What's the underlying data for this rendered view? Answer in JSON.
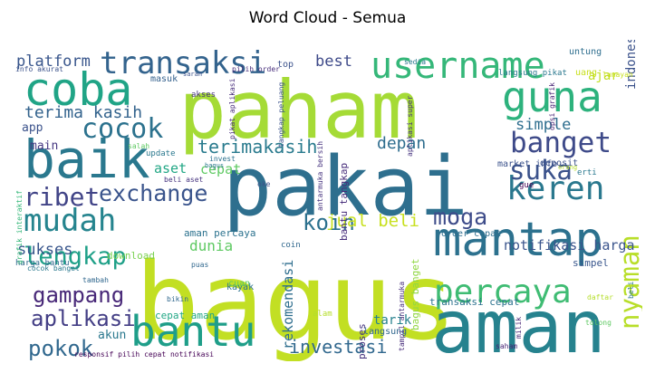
{
  "chart_data": {
    "type": "wordcloud",
    "title": "Word Cloud - Semua",
    "colormap": "viridis",
    "words": [
      {
        "text": "bagus",
        "rank": 1,
        "color": "#c2df23",
        "orient": "h"
      },
      {
        "text": "pakai",
        "rank": 2,
        "color": "#2e6f8e",
        "orient": "h"
      },
      {
        "text": "paham",
        "rank": 3,
        "color": "#a5db36",
        "orient": "h"
      },
      {
        "text": "aman",
        "rank": 4,
        "color": "#26828e",
        "orient": "h"
      },
      {
        "text": "baik",
        "rank": 5,
        "color": "#2a788e",
        "orient": "h"
      },
      {
        "text": "mantap",
        "rank": 6,
        "color": "#2c718e",
        "orient": "h"
      },
      {
        "text": "coba",
        "rank": 7,
        "color": "#20a486",
        "orient": "h"
      },
      {
        "text": "guna",
        "rank": 8,
        "color": "#2db27d",
        "orient": "h"
      },
      {
        "text": "bantu",
        "rank": 9,
        "color": "#1f9e89",
        "orient": "h"
      },
      {
        "text": "username",
        "rank": 10,
        "color": "#35b779",
        "orient": "h"
      },
      {
        "text": "percaya",
        "rank": 11,
        "color": "#3fbc73",
        "orient": "h"
      },
      {
        "text": "keren",
        "rank": 12,
        "color": "#2a788e",
        "orient": "h"
      },
      {
        "text": "mudah",
        "rank": 13,
        "color": "#25848e",
        "orient": "h"
      },
      {
        "text": "transaksi",
        "rank": 14,
        "color": "#33638d",
        "orient": "h"
      },
      {
        "text": "banget",
        "rank": 15,
        "color": "#3e4a89",
        "orient": "h"
      },
      {
        "text": "cocok",
        "rank": 16,
        "color": "#2c728e",
        "orient": "h"
      },
      {
        "text": "suka",
        "rank": 17,
        "color": "#3b528b",
        "orient": "h"
      },
      {
        "text": "ribet",
        "rank": 18,
        "color": "#414487",
        "orient": "h"
      },
      {
        "text": "lengkap",
        "rank": 19,
        "color": "#1fa088",
        "orient": "h"
      },
      {
        "text": "moga",
        "rank": 20,
        "color": "#3e4c8a",
        "orient": "h"
      },
      {
        "text": "nyaman",
        "rank": 21,
        "color": "#b8de29",
        "orient": "v"
      },
      {
        "text": "exchange",
        "rank": 22,
        "color": "#3a548c",
        "orient": "h"
      },
      {
        "text": "gampang",
        "rank": 23,
        "color": "#482878",
        "orient": "h"
      },
      {
        "text": "aplikasi",
        "rank": 24,
        "color": "#433e85",
        "orient": "h"
      },
      {
        "text": "pokok",
        "rank": 25,
        "color": "#31688e",
        "orient": "h"
      },
      {
        "text": "koin",
        "rank": 26,
        "color": "#2c718e",
        "orient": "h"
      },
      {
        "text": "terimakasih",
        "rank": 27,
        "color": "#2a7b8e",
        "orient": "h"
      },
      {
        "text": "investasi",
        "rank": 28,
        "color": "#31688e",
        "orient": "h"
      },
      {
        "text": "jual beli",
        "rank": 29,
        "color": "#c8e020",
        "orient": "h"
      },
      {
        "text": "depan",
        "rank": 30,
        "color": "#2e6d8e",
        "orient": "h"
      },
      {
        "text": "terima kasih",
        "rank": 31,
        "color": "#33638d",
        "orient": "h"
      },
      {
        "text": "simple",
        "rank": 32,
        "color": "#2e6e8e",
        "orient": "h"
      },
      {
        "text": "platform",
        "rank": 33,
        "color": "#39568c",
        "orient": "h"
      },
      {
        "text": "sukses",
        "rank": 34,
        "color": "#39568c",
        "orient": "h"
      },
      {
        "text": "best",
        "rank": 35,
        "color": "#3e4a89",
        "orient": "h"
      },
      {
        "text": "dunia",
        "rank": 36,
        "color": "#5ec962",
        "orient": "h"
      },
      {
        "text": "notifikasi harga",
        "rank": 37,
        "color": "#3a548c",
        "orient": "h"
      },
      {
        "text": "rekomendasi",
        "rank": 38,
        "color": "#2e6e8e",
        "orient": "v"
      },
      {
        "text": "indonesia",
        "rank": 39,
        "color": "#3b528b",
        "orient": "v"
      },
      {
        "text": "ajar",
        "rank": 40,
        "color": "#c2df23",
        "orient": "h"
      },
      {
        "text": "aset",
        "rank": 41,
        "color": "#22a785",
        "orient": "h"
      },
      {
        "text": "cepat",
        "rank": 42,
        "color": "#5ec962",
        "orient": "h"
      },
      {
        "text": "tarik",
        "rank": 43,
        "color": "#26828e",
        "orient": "h"
      },
      {
        "text": "akun",
        "rank": 44,
        "color": "#2a788e",
        "orient": "h"
      },
      {
        "text": "main",
        "rank": 45,
        "color": "#453781",
        "orient": "h"
      },
      {
        "text": "app",
        "rank": 46,
        "color": "#3b528b",
        "orient": "h"
      },
      {
        "text": "aman percaya",
        "rank": 47,
        "color": "#2c728e",
        "orient": "h"
      },
      {
        "text": "cepat aman",
        "rank": 48,
        "color": "#22a785",
        "orient": "h"
      },
      {
        "text": "transaksi cepat",
        "rank": 49,
        "color": "#2c728e",
        "orient": "h"
      },
      {
        "text": "bagus banget",
        "rank": 50,
        "color": "#90d743",
        "orient": "v"
      },
      {
        "text": "deposit",
        "rank": 51,
        "color": "#3b528b",
        "orient": "h"
      },
      {
        "text": "market info",
        "rank": 52,
        "color": "#3b528b",
        "orient": "h"
      },
      {
        "text": "bantu tangkap",
        "rank": 53,
        "color": "#472d7b",
        "orient": "v"
      },
      {
        "text": "harga bantu",
        "rank": 54,
        "color": "#31688e",
        "orient": "h"
      },
      {
        "text": "order cepat",
        "rank": 55,
        "color": "#2e6e8e",
        "orient": "h"
      },
      {
        "text": "simpel",
        "rank": 56,
        "color": "#39568c",
        "orient": "h"
      },
      {
        "text": "download",
        "rank": 57,
        "color": "#7ad151",
        "orient": "h"
      },
      {
        "text": "kayak",
        "rank": 58,
        "color": "#2c728e",
        "orient": "h"
      },
      {
        "text": "cuan",
        "rank": 59,
        "color": "#5ec962",
        "orient": "h"
      },
      {
        "text": "update",
        "rank": 60,
        "color": "#2a788e",
        "orient": "h"
      },
      {
        "text": "langsung",
        "rank": 61,
        "color": "#31688e",
        "orient": "h"
      },
      {
        "text": "alam",
        "rank": 62,
        "color": "#b5de2b",
        "orient": "h"
      },
      {
        "text": "proses",
        "rank": 63,
        "color": "#46337f",
        "orient": "v"
      },
      {
        "text": "untung",
        "rank": 64,
        "color": "#2e6e8e",
        "orient": "h"
      },
      {
        "text": "uang",
        "rank": 65,
        "color": "#c8e020",
        "orient": "h"
      },
      {
        "text": "masuk",
        "rank": 66,
        "color": "#34618d",
        "orient": "h"
      },
      {
        "text": "top",
        "rank": 67,
        "color": "#3b528b",
        "orient": "h"
      },
      {
        "text": "coin",
        "rank": 68,
        "color": "#31688e",
        "orient": "h"
      },
      {
        "text": "erti",
        "rank": 69,
        "color": "#2a788e",
        "orient": "h"
      },
      {
        "text": "gue",
        "rank": 70,
        "color": "#440154",
        "orient": "h"
      },
      {
        "text": "invest",
        "rank": 71,
        "color": "#2c728e",
        "orient": "h"
      },
      {
        "text": "oke",
        "rank": 72,
        "color": "#3b528b",
        "orient": "h"
      },
      {
        "text": "akses",
        "rank": 73,
        "color": "#46327e",
        "orient": "h"
      },
      {
        "text": "puas",
        "rank": 74,
        "color": "#31688e",
        "orient": "h"
      },
      {
        "text": "bikin",
        "rank": 75,
        "color": "#31688e",
        "orient": "h"
      },
      {
        "text": "tambah",
        "rank": 76,
        "color": "#31688e",
        "orient": "h"
      },
      {
        "text": "saham",
        "rank": 77,
        "color": "#482475",
        "orient": "h"
      },
      {
        "text": "tolong",
        "rank": 78,
        "color": "#5ec962",
        "orient": "h"
      },
      {
        "text": "daftar",
        "rank": 79,
        "color": "#b5de2b",
        "orient": "h"
      },
      {
        "text": "orang",
        "rank": 80,
        "color": "#b5de2b",
        "orient": "h"
      },
      {
        "text": "sedia",
        "rank": 81,
        "color": "#2a788e",
        "orient": "h"
      },
      {
        "text": "lumayan",
        "rank": 82,
        "color": "#c8e020",
        "orient": "h"
      },
      {
        "text": "salah",
        "rank": 83,
        "color": "#5ec962",
        "orient": "h"
      },
      {
        "text": "saran",
        "rank": 84,
        "color": "#3b528b",
        "orient": "h"
      },
      {
        "text": "bagus",
        "rank": 85,
        "color": "#2a788e",
        "orient": "h"
      },
      {
        "text": "beli aset",
        "rank": 86,
        "color": "#46337f",
        "orient": "h"
      },
      {
        "text": "info akurat",
        "rank": 87,
        "color": "#3b528b",
        "orient": "h"
      },
      {
        "text": "pilih order",
        "rank": 88,
        "color": "#472d7b",
        "orient": "h"
      },
      {
        "text": "langsung pikat",
        "rank": 89,
        "color": "#2a788e",
        "orient": "h"
      },
      {
        "text": "responsif pilih cepat notifikasi",
        "rank": 90,
        "color": "#440154",
        "orient": "h"
      },
      {
        "text": "cocok banget",
        "rank": 91,
        "color": "#2a788e",
        "orient": "h"
      },
      {
        "text": "milik",
        "rank": 92,
        "color": "#482475",
        "orient": "v"
      },
      {
        "text": "beli",
        "rank": 93,
        "color": "#2a788e",
        "orient": "v"
      },
      {
        "text": "grafik interaktif",
        "rank": 94,
        "color": "#35b779",
        "orient": "v"
      },
      {
        "text": "opsi grafik",
        "rank": 95,
        "color": "#482475",
        "orient": "v"
      },
      {
        "text": "aplikasi super",
        "rank": 96,
        "color": "#46337f",
        "orient": "v"
      },
      {
        "text": "antarmuka bersih",
        "rank": 97,
        "color": "#46337f",
        "orient": "v"
      },
      {
        "text": "pikat aplikasi",
        "rank": 98,
        "color": "#472d7b",
        "orient": "v"
      },
      {
        "text": "tangkap peluang",
        "rank": 99,
        "color": "#3b528b",
        "orient": "v"
      },
      {
        "text": "tampil antarmuka",
        "rank": 100,
        "color": "#472d7b",
        "orient": "v"
      }
    ]
  }
}
